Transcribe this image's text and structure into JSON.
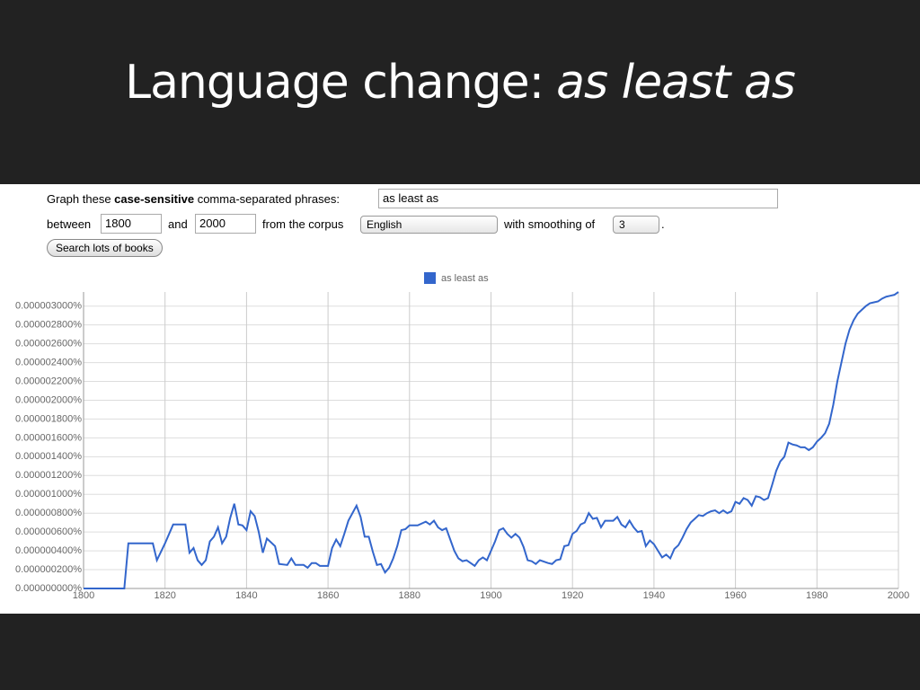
{
  "slide": {
    "title": "Language change:",
    "title_emphasis": "as least as"
  },
  "form": {
    "label_start": "Graph these",
    "label_bold": "case-sensitive",
    "label_end": "comma-separated phrases:",
    "phrase": "as least as",
    "between": "between",
    "start_year": "1800",
    "and": "and",
    "end_year": "2000",
    "corpus_label": "from the corpus",
    "corpus": "English",
    "smoothing_label": "with smoothing of",
    "smoothing": "3",
    "period": ".",
    "button": "Search lots of books"
  },
  "chart_data": {
    "type": "line",
    "legend": "top",
    "grid": true,
    "xlim": [
      1800,
      2000
    ],
    "xticks": [
      1800,
      1820,
      1840,
      1860,
      1880,
      1900,
      1920,
      1940,
      1960,
      1980,
      2000
    ],
    "ylim": [
      0,
      3.15e-06
    ],
    "yticks": [
      {
        "value": 0,
        "label": "0.000000000%"
      },
      {
        "value": 2e-07,
        "label": "0.000000200%"
      },
      {
        "value": 4e-07,
        "label": "0.000000400%"
      },
      {
        "value": 6e-07,
        "label": "0.000000600%"
      },
      {
        "value": 8e-07,
        "label": "0.000000800%"
      },
      {
        "value": 1e-06,
        "label": "0.000001000%"
      },
      {
        "value": 1.2e-06,
        "label": "0.000001200%"
      },
      {
        "value": 1.4e-06,
        "label": "0.000001400%"
      },
      {
        "value": 1.6e-06,
        "label": "0.000001600%"
      },
      {
        "value": 1.8e-06,
        "label": "0.000001800%"
      },
      {
        "value": 2e-06,
        "label": "0.000002000%"
      },
      {
        "value": 2.2e-06,
        "label": "0.000002200%"
      },
      {
        "value": 2.4e-06,
        "label": "0.000002400%"
      },
      {
        "value": 2.6e-06,
        "label": "0.000002600%"
      },
      {
        "value": 2.8e-06,
        "label": "0.000002800%"
      },
      {
        "value": 3e-06,
        "label": "0.000003000%"
      }
    ],
    "x": [
      1800,
      1810,
      1811,
      1817,
      1818,
      1820,
      1822,
      1825,
      1826,
      1827,
      1828,
      1829,
      1830,
      1831,
      1832,
      1833,
      1834,
      1835,
      1836,
      1837,
      1838,
      1839,
      1840,
      1841,
      1842,
      1843,
      1844,
      1845,
      1846,
      1847,
      1848,
      1850,
      1851,
      1852,
      1854,
      1855,
      1856,
      1857,
      1858,
      1860,
      1861,
      1862,
      1863,
      1864,
      1865,
      1867,
      1868,
      1869,
      1870,
      1871,
      1872,
      1873,
      1874,
      1875,
      1876,
      1877,
      1878,
      1879,
      1880,
      1882,
      1884,
      1885,
      1886,
      1887,
      1888,
      1889,
      1890,
      1891,
      1892,
      1893,
      1894,
      1895,
      1896,
      1897,
      1898,
      1899,
      1900,
      1901,
      1902,
      1903,
      1904,
      1905,
      1906,
      1907,
      1908,
      1909,
      1910,
      1911,
      1912,
      1914,
      1915,
      1916,
      1917,
      1918,
      1919,
      1920,
      1921,
      1922,
      1923,
      1924,
      1925,
      1926,
      1927,
      1928,
      1930,
      1931,
      1932,
      1933,
      1934,
      1935,
      1936,
      1937,
      1938,
      1939,
      1940,
      1941,
      1942,
      1943,
      1944,
      1945,
      1946,
      1947,
      1948,
      1949,
      1950,
      1951,
      1952,
      1953,
      1954,
      1955,
      1956,
      1957,
      1958,
      1959,
      1960,
      1961,
      1962,
      1963,
      1964,
      1965,
      1966,
      1967,
      1968,
      1969,
      1970,
      1971,
      1972,
      1973,
      1974,
      1975,
      1976,
      1977,
      1978,
      1979,
      1980,
      1981,
      1982,
      1983,
      1984,
      1985,
      1986,
      1987,
      1988,
      1989,
      1990,
      1991,
      1992,
      1993,
      1994,
      1995,
      1996,
      1997,
      1998,
      1999,
      2000
    ],
    "series": [
      {
        "name": "as least as",
        "color": "#3366cc",
        "values": [
          0,
          0,
          4.8e-07,
          4.8e-07,
          3e-07,
          4.8e-07,
          6.8e-07,
          6.8e-07,
          3.8e-07,
          4.3e-07,
          3e-07,
          2.5e-07,
          3e-07,
          5e-07,
          5.5e-07,
          6.5e-07,
          4.8e-07,
          5.5e-07,
          7.5e-07,
          9e-07,
          6.8e-07,
          6.7e-07,
          6.2e-07,
          8.2e-07,
          7.7e-07,
          6e-07,
          3.8e-07,
          5.3e-07,
          4.9e-07,
          4.5e-07,
          2.6e-07,
          2.5e-07,
          3.2e-07,
          2.5e-07,
          2.5e-07,
          2.2e-07,
          2.7e-07,
          2.7e-07,
          2.4e-07,
          2.4e-07,
          4.3e-07,
          5.2e-07,
          4.5e-07,
          5.8e-07,
          7.2e-07,
          8.8e-07,
          7.6e-07,
          5.5e-07,
          5.5e-07,
          3.9e-07,
          2.5e-07,
          2.6e-07,
          1.7e-07,
          2.2e-07,
          3.2e-07,
          4.5e-07,
          6.2e-07,
          6.3e-07,
          6.7e-07,
          6.7e-07,
          7.1e-07,
          6.8e-07,
          7.2e-07,
          6.5e-07,
          6.2e-07,
          6.4e-07,
          5.2e-07,
          4e-07,
          3.2e-07,
          2.9e-07,
          3e-07,
          2.7e-07,
          2.4e-07,
          3e-07,
          3.3e-07,
          3e-07,
          4e-07,
          5e-07,
          6.2e-07,
          6.4e-07,
          5.8e-07,
          5.4e-07,
          5.8e-07,
          5.4e-07,
          4.4e-07,
          3e-07,
          2.9e-07,
          2.6e-07,
          3e-07,
          2.7e-07,
          2.6e-07,
          3e-07,
          3.1e-07,
          4.5e-07,
          4.6e-07,
          5.8e-07,
          6.1e-07,
          6.8e-07,
          7e-07,
          8e-07,
          7.4e-07,
          7.5e-07,
          6.5e-07,
          7.2e-07,
          7.2e-07,
          7.6e-07,
          6.8e-07,
          6.5e-07,
          7.2e-07,
          6.5e-07,
          6e-07,
          6.1e-07,
          4.5e-07,
          5.1e-07,
          4.7e-07,
          4e-07,
          3.3e-07,
          3.6e-07,
          3.2e-07,
          4.2e-07,
          4.6e-07,
          5.4e-07,
          6.3e-07,
          7e-07,
          7.4e-07,
          7.8e-07,
          7.7e-07,
          8e-07,
          8.2e-07,
          8.3e-07,
          8e-07,
          8.3e-07,
          8e-07,
          8.2e-07,
          9.2e-07,
          9e-07,
          9.6e-07,
          9.4e-07,
          8.8e-07,
          9.8e-07,
          9.7e-07,
          9.4e-07,
          9.6e-07,
          1.1e-06,
          1.25e-06,
          1.35e-06,
          1.4e-06,
          1.55e-06,
          1.53e-06,
          1.52e-06,
          1.5e-06,
          1.5e-06,
          1.47e-06,
          1.5e-06,
          1.56e-06,
          1.6e-06,
          1.65e-06,
          1.75e-06,
          1.95e-06,
          2.2e-06,
          2.4e-06,
          2.6e-06,
          2.75e-06,
          2.85e-06,
          2.92e-06,
          2.96e-06,
          3e-06,
          3.03e-06,
          3.04e-06,
          3.05e-06,
          3.08e-06,
          3.1e-06,
          3.11e-06,
          3.12e-06,
          3.15e-06
        ]
      }
    ]
  }
}
